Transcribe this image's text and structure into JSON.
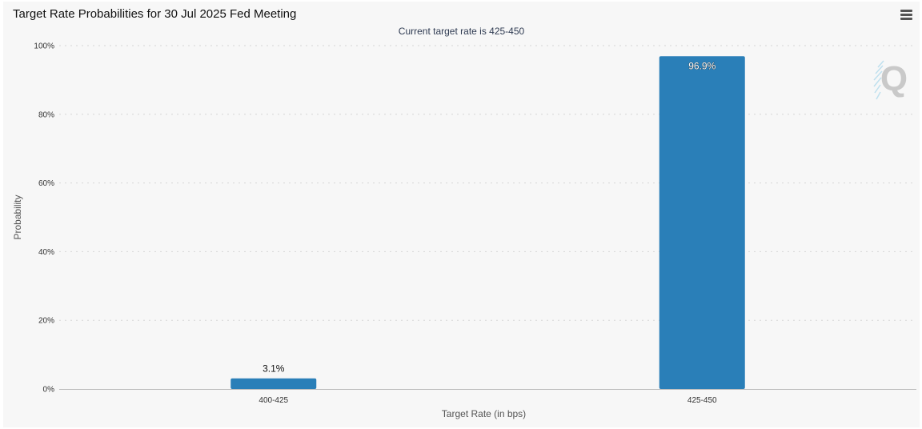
{
  "header": {
    "title": "Target Rate Probabilities for 30 Jul 2025 Fed Meeting",
    "subtitle": "Current target rate is 425-450",
    "menu_icon": "hamburger-menu-icon"
  },
  "watermark": {
    "icon": "q-logo-icon",
    "letter": "Q"
  },
  "chart_data": {
    "type": "bar",
    "title": "Target Rate Probabilities for 30 Jul 2025 Fed Meeting",
    "subtitle": "Current target rate is 425-450",
    "xlabel": "Target Rate (in bps)",
    "ylabel": "Probability",
    "categories": [
      "400-425",
      "425-450"
    ],
    "values": [
      3.1,
      96.9
    ],
    "data_labels": [
      "3.1%",
      "96.9%"
    ],
    "ylim": [
      0,
      100
    ],
    "yticks": [
      0,
      20,
      40,
      60,
      80,
      100
    ],
    "ytick_labels": [
      "0%",
      "20%",
      "40%",
      "60%",
      "80%",
      "100%"
    ],
    "grid": true,
    "legend": "none",
    "bar_color": "#2a7fb8"
  }
}
